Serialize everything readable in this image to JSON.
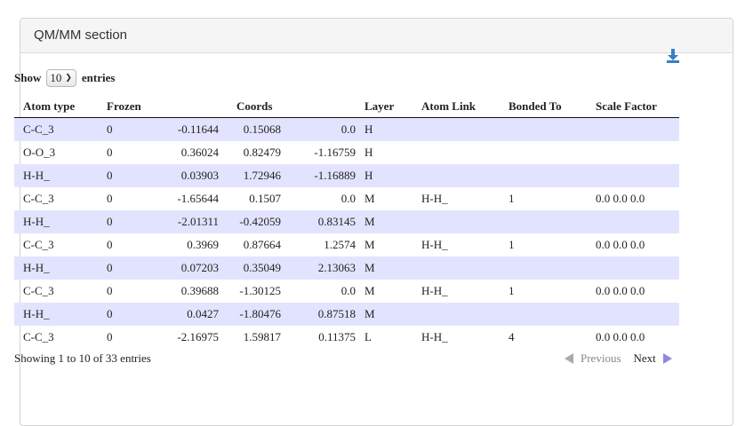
{
  "panel": {
    "title": "QM/MM section"
  },
  "icons": {
    "download": "download-icon"
  },
  "length": {
    "prefix": "Show",
    "value": "10",
    "suffix": "entries"
  },
  "table": {
    "headers": [
      "Atom type",
      "Frozen",
      "Coords",
      "Layer",
      "Atom Link",
      "Bonded To",
      "Scale Factor"
    ],
    "rows": [
      {
        "atom": "C-C_3",
        "frozen": "0",
        "x": "-0.11644",
        "y": "0.15068",
        "z": "0.0",
        "layer": "H",
        "link": "",
        "bonded": "",
        "scale": ""
      },
      {
        "atom": "O-O_3",
        "frozen": "0",
        "x": "0.36024",
        "y": "0.82479",
        "z": "-1.16759",
        "layer": "H",
        "link": "",
        "bonded": "",
        "scale": ""
      },
      {
        "atom": "H-H_",
        "frozen": "0",
        "x": "0.03903",
        "y": "1.72946",
        "z": "-1.16889",
        "layer": "H",
        "link": "",
        "bonded": "",
        "scale": ""
      },
      {
        "atom": "C-C_3",
        "frozen": "0",
        "x": "-1.65644",
        "y": "0.1507",
        "z": "0.0",
        "layer": "M",
        "link": "H-H_",
        "bonded": "1",
        "scale": "0.0 0.0 0.0"
      },
      {
        "atom": "H-H_",
        "frozen": "0",
        "x": "-2.01311",
        "y": "-0.42059",
        "z": "0.83145",
        "layer": "M",
        "link": "",
        "bonded": "",
        "scale": ""
      },
      {
        "atom": "C-C_3",
        "frozen": "0",
        "x": "0.3969",
        "y": "0.87664",
        "z": "1.2574",
        "layer": "M",
        "link": "H-H_",
        "bonded": "1",
        "scale": "0.0 0.0 0.0"
      },
      {
        "atom": "H-H_",
        "frozen": "0",
        "x": "0.07203",
        "y": "0.35049",
        "z": "2.13063",
        "layer": "M",
        "link": "",
        "bonded": "",
        "scale": ""
      },
      {
        "atom": "C-C_3",
        "frozen": "0",
        "x": "0.39688",
        "y": "-1.30125",
        "z": "0.0",
        "layer": "M",
        "link": "H-H_",
        "bonded": "1",
        "scale": "0.0 0.0 0.0"
      },
      {
        "atom": "H-H_",
        "frozen": "0",
        "x": "0.0427",
        "y": "-1.80476",
        "z": "0.87518",
        "layer": "M",
        "link": "",
        "bonded": "",
        "scale": ""
      },
      {
        "atom": "C-C_3",
        "frozen": "0",
        "x": "-2.16975",
        "y": "1.59817",
        "z": "0.11375",
        "layer": "L",
        "link": "H-H_",
        "bonded": "4",
        "scale": "0.0 0.0 0.0"
      }
    ]
  },
  "info": "Showing 1 to 10 of 33 entries",
  "pagination": {
    "previous": "Previous",
    "next": "Next"
  }
}
